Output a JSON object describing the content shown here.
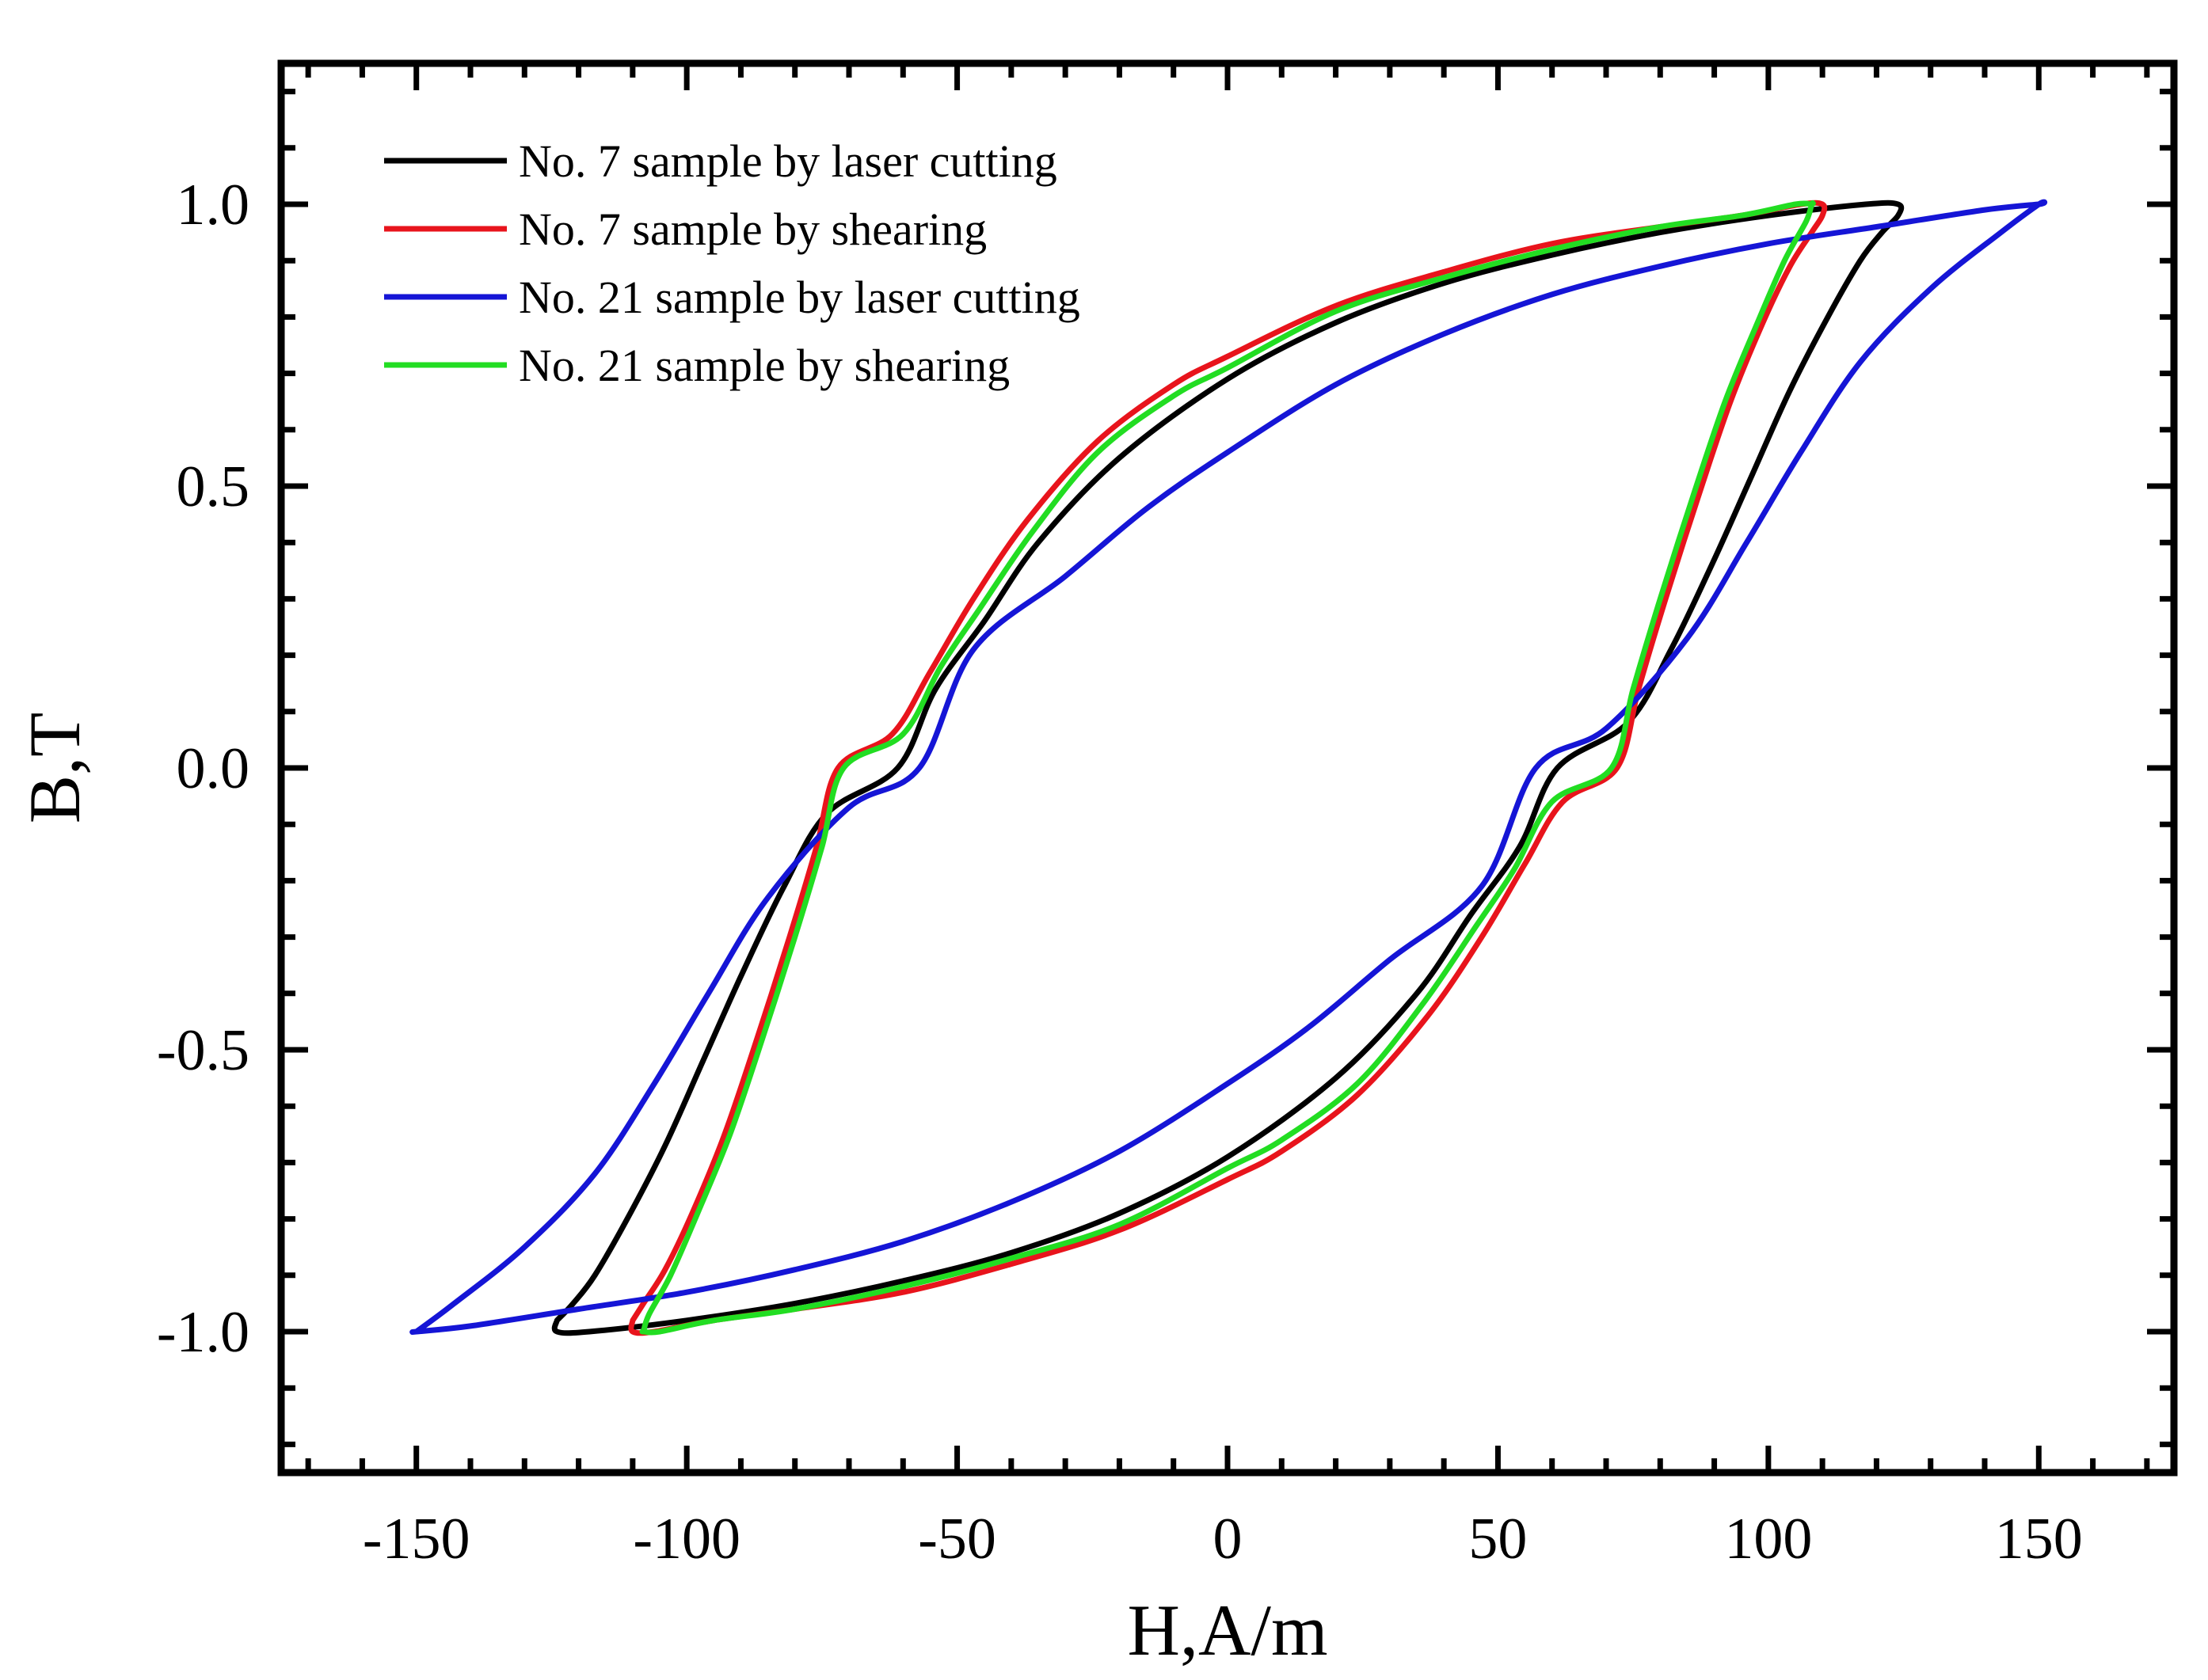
{
  "chart_data": {
    "type": "line",
    "title": "",
    "xlabel": "H,A/m",
    "ylabel": "B,T",
    "xlim": [
      -175,
      175
    ],
    "ylim": [
      -1.25,
      1.25
    ],
    "xticks": [
      -150,
      -100,
      -50,
      0,
      50,
      100,
      150
    ],
    "xtick_labels": [
      "-150",
      "-100",
      "-50",
      "0",
      "50",
      "100",
      "150"
    ],
    "yticks": [
      -1.0,
      -0.5,
      0.0,
      0.5,
      1.0
    ],
    "ytick_labels": [
      "-1.0",
      "-0.5",
      "0.0",
      "0.5",
      "1.0"
    ],
    "x_minor_step": 10,
    "y_minor_step": 0.1,
    "grid": false,
    "legend_position": "top-left",
    "series": [
      {
        "name": "No. 7 sample by laser cutting",
        "color": "#000000",
        "Hmax": 124,
        "Hc": 61,
        "Bmax": 1.0,
        "upper": [
          [
            -124,
            -0.98
          ],
          [
            -121,
            -0.95
          ],
          [
            -117,
            -0.9
          ],
          [
            -111,
            -0.8
          ],
          [
            -104,
            -0.67
          ],
          [
            -97,
            -0.52
          ],
          [
            -90,
            -0.37
          ],
          [
            -82,
            -0.21
          ],
          [
            -74,
            -0.08
          ],
          [
            -61,
            0.0
          ],
          [
            -54,
            0.14
          ],
          [
            -45,
            0.26
          ],
          [
            -35,
            0.4
          ],
          [
            -20,
            0.55
          ],
          [
            0,
            0.69
          ],
          [
            20,
            0.79
          ],
          [
            40,
            0.86
          ],
          [
            60,
            0.91
          ],
          [
            80,
            0.95
          ],
          [
            100,
            0.98
          ],
          [
            118,
            1.0
          ],
          [
            124,
            1.0
          ]
        ],
        "lower": [
          [
            124,
            0.98
          ],
          [
            121,
            0.95
          ],
          [
            117,
            0.9
          ],
          [
            111,
            0.8
          ],
          [
            104,
            0.67
          ],
          [
            97,
            0.52
          ],
          [
            90,
            0.37
          ],
          [
            82,
            0.21
          ],
          [
            74,
            0.08
          ],
          [
            61,
            0.0
          ],
          [
            54,
            -0.14
          ],
          [
            45,
            -0.26
          ],
          [
            35,
            -0.4
          ],
          [
            20,
            -0.55
          ],
          [
            0,
            -0.69
          ],
          [
            -20,
            -0.79
          ],
          [
            -40,
            -0.86
          ],
          [
            -60,
            -0.91
          ],
          [
            -80,
            -0.95
          ],
          [
            -100,
            -0.98
          ],
          [
            -118,
            -1.0
          ],
          [
            -124,
            -1.0
          ]
        ]
      },
      {
        "name": "No. 7 sample by shearing",
        "color": "#e8141c",
        "Hmax": 110,
        "Hc": 72,
        "Bmax": 1.0,
        "upper": [
          [
            -110,
            -0.98
          ],
          [
            -108,
            -0.95
          ],
          [
            -104,
            -0.89
          ],
          [
            -99,
            -0.79
          ],
          [
            -93,
            -0.65
          ],
          [
            -87,
            -0.48
          ],
          [
            -81,
            -0.3
          ],
          [
            -76,
            -0.14
          ],
          [
            -72,
            0.0
          ],
          [
            -62,
            0.06
          ],
          [
            -55,
            0.17
          ],
          [
            -47,
            0.3
          ],
          [
            -37,
            0.44
          ],
          [
            -24,
            0.58
          ],
          [
            -10,
            0.68
          ],
          [
            0,
            0.73
          ],
          [
            20,
            0.82
          ],
          [
            40,
            0.88
          ],
          [
            60,
            0.93
          ],
          [
            80,
            0.96
          ],
          [
            95,
            0.98
          ],
          [
            106,
            1.0
          ],
          [
            110,
            1.0
          ]
        ],
        "lower": [
          [
            110,
            0.98
          ],
          [
            108,
            0.95
          ],
          [
            104,
            0.89
          ],
          [
            99,
            0.79
          ],
          [
            93,
            0.65
          ],
          [
            87,
            0.48
          ],
          [
            81,
            0.3
          ],
          [
            76,
            0.14
          ],
          [
            72,
            0.0
          ],
          [
            62,
            -0.06
          ],
          [
            55,
            -0.17
          ],
          [
            47,
            -0.3
          ],
          [
            37,
            -0.44
          ],
          [
            24,
            -0.58
          ],
          [
            10,
            -0.68
          ],
          [
            0,
            -0.73
          ],
          [
            -20,
            -0.82
          ],
          [
            -40,
            -0.88
          ],
          [
            -60,
            -0.93
          ],
          [
            -80,
            -0.96
          ],
          [
            -95,
            -0.98
          ],
          [
            -106,
            -1.0
          ],
          [
            -110,
            -1.0
          ]
        ]
      },
      {
        "name": "No. 21 sample by laser cutting",
        "color": "#1515d6",
        "Hmax": 150,
        "Hc": 57,
        "Bmax": 1.0,
        "upper": [
          [
            -150,
            -1.0
          ],
          [
            -143,
            -0.95
          ],
          [
            -130,
            -0.85
          ],
          [
            -117,
            -0.72
          ],
          [
            -106,
            -0.56
          ],
          [
            -96,
            -0.4
          ],
          [
            -85,
            -0.23
          ],
          [
            -70,
            -0.07
          ],
          [
            -57,
            0.0
          ],
          [
            -47,
            0.21
          ],
          [
            -30,
            0.34
          ],
          [
            -15,
            0.46
          ],
          [
            0,
            0.56
          ],
          [
            20,
            0.68
          ],
          [
            40,
            0.77
          ],
          [
            60,
            0.84
          ],
          [
            80,
            0.89
          ],
          [
            100,
            0.93
          ],
          [
            120,
            0.96
          ],
          [
            140,
            0.99
          ],
          [
            150,
            1.0
          ]
        ],
        "lower": [
          [
            150,
            1.0
          ],
          [
            143,
            0.95
          ],
          [
            130,
            0.85
          ],
          [
            117,
            0.72
          ],
          [
            106,
            0.56
          ],
          [
            96,
            0.4
          ],
          [
            85,
            0.23
          ],
          [
            70,
            0.07
          ],
          [
            57,
            0.0
          ],
          [
            47,
            -0.21
          ],
          [
            30,
            -0.34
          ],
          [
            15,
            -0.46
          ],
          [
            0,
            -0.56
          ],
          [
            -20,
            -0.68
          ],
          [
            -40,
            -0.77
          ],
          [
            -60,
            -0.84
          ],
          [
            -80,
            -0.89
          ],
          [
            -100,
            -0.93
          ],
          [
            -120,
            -0.96
          ],
          [
            -140,
            -0.99
          ],
          [
            -150,
            -1.0
          ]
        ]
      },
      {
        "name": "No. 21 sample by shearing",
        "color": "#22dd22",
        "Hmax": 108,
        "Hc": 71,
        "Bmax": 1.0,
        "upper": [
          [
            -108,
            -1.0
          ],
          [
            -107,
            -0.97
          ],
          [
            -103,
            -0.9
          ],
          [
            -98,
            -0.79
          ],
          [
            -92,
            -0.65
          ],
          [
            -86,
            -0.48
          ],
          [
            -80,
            -0.3
          ],
          [
            -75,
            -0.14
          ],
          [
            -71,
            0.0
          ],
          [
            -60,
            0.06
          ],
          [
            -53,
            0.18
          ],
          [
            -46,
            0.28
          ],
          [
            -36,
            0.42
          ],
          [
            -24,
            0.56
          ],
          [
            -10,
            0.66
          ],
          [
            0,
            0.71
          ],
          [
            20,
            0.81
          ],
          [
            40,
            0.87
          ],
          [
            60,
            0.92
          ],
          [
            80,
            0.96
          ],
          [
            95,
            0.98
          ],
          [
            105,
            1.0
          ],
          [
            108,
            1.0
          ]
        ],
        "lower": [
          [
            108,
            1.0
          ],
          [
            107,
            0.97
          ],
          [
            103,
            0.9
          ],
          [
            98,
            0.79
          ],
          [
            92,
            0.65
          ],
          [
            86,
            0.48
          ],
          [
            80,
            0.3
          ],
          [
            75,
            0.14
          ],
          [
            71,
            0.0
          ],
          [
            60,
            -0.06
          ],
          [
            53,
            -0.18
          ],
          [
            46,
            -0.28
          ],
          [
            36,
            -0.42
          ],
          [
            24,
            -0.56
          ],
          [
            10,
            -0.66
          ],
          [
            0,
            -0.71
          ],
          [
            -20,
            -0.81
          ],
          [
            -40,
            -0.87
          ],
          [
            -60,
            -0.92
          ],
          [
            -80,
            -0.96
          ],
          [
            -95,
            -0.98
          ],
          [
            -105,
            -1.0
          ],
          [
            -108,
            -1.0
          ]
        ]
      }
    ]
  }
}
